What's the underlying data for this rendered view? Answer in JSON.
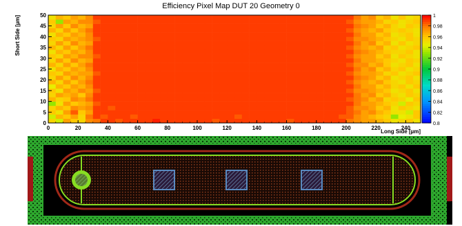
{
  "chart_data": {
    "type": "heatmap",
    "title": "Efficiency Pixel Map DUT 20 Geometry 0",
    "xlabel": "Long Side [µm]",
    "ylabel": "Short Side [µm]",
    "xlim": [
      0,
      250
    ],
    "ylim": [
      0,
      50
    ],
    "x_ticks": [
      "0",
      "20",
      "40",
      "60",
      "80",
      "100",
      "120",
      "140",
      "160",
      "180",
      "200",
      "220",
      "240"
    ],
    "y_ticks": [
      "0",
      "5",
      "10",
      "15",
      "20",
      "25",
      "30",
      "35",
      "40",
      "45",
      "50"
    ],
    "x_bins": 50,
    "y_bins": 25,
    "bin_size": [
      5,
      2
    ],
    "z_range": [
      0.8,
      1.0
    ],
    "colorbar_ticks": [
      "0.8",
      "0.82",
      "0.84",
      "0.86",
      "0.88",
      "0.9",
      "0.92",
      "0.94",
      "0.96",
      "0.98",
      "1"
    ],
    "z_values_description_rows": "rows ordered from y=0 (bottom) to y=50 (top); each row has 50 bins from x=0 to x=250",
    "z_rows": [
      [
        0.955,
        0.94,
        0.97,
        0.96,
        0.955,
        0.975,
        0.98,
        0.99,
        0.99,
        0.985,
        0.99,
        0.99,
        0.99,
        0.99,
        0.995,
        0.99,
        0.99,
        0.99,
        0.99,
        0.99,
        0.99,
        0.99,
        0.985,
        0.99,
        0.99,
        0.99,
        0.99,
        0.99,
        0.99,
        0.99,
        0.99,
        0.99,
        0.985,
        0.99,
        0.99,
        0.99,
        0.99,
        0.99,
        0.99,
        0.99,
        0.98,
        0.975,
        0.97,
        0.97,
        0.965,
        0.96,
        0.95,
        0.955,
        0.96,
        0.95
      ],
      [
        0.94,
        0.965,
        0.96,
        0.97,
        0.955,
        0.98,
        0.99,
        0.985,
        0.99,
        0.99,
        0.99,
        0.985,
        0.99,
        0.99,
        0.99,
        0.99,
        0.99,
        0.99,
        0.99,
        0.99,
        0.99,
        0.99,
        0.99,
        0.99,
        0.99,
        0.985,
        0.99,
        0.99,
        0.99,
        0.99,
        0.99,
        0.99,
        0.99,
        0.99,
        0.99,
        0.99,
        0.99,
        0.99,
        0.99,
        0.985,
        0.985,
        0.975,
        0.97,
        0.965,
        0.96,
        0.955,
        0.93,
        0.945,
        0.95,
        0.96
      ],
      [
        0.96,
        0.95,
        0.97,
        0.985,
        0.96,
        0.97,
        0.99,
        0.99,
        0.99,
        0.99,
        0.99,
        0.99,
        0.99,
        0.99,
        0.99,
        0.99,
        0.99,
        0.99,
        0.99,
        0.99,
        0.99,
        0.99,
        0.99,
        0.99,
        0.99,
        0.99,
        0.99,
        0.99,
        0.99,
        0.99,
        0.99,
        0.99,
        0.99,
        0.99,
        0.99,
        0.99,
        0.99,
        0.99,
        0.99,
        0.99,
        0.985,
        0.98,
        0.97,
        0.975,
        0.965,
        0.96,
        0.95,
        0.95,
        0.94,
        0.96
      ],
      [
        0.955,
        0.965,
        0.96,
        0.975,
        0.97,
        0.975,
        0.99,
        0.99,
        0.985,
        0.99,
        0.99,
        0.99,
        0.99,
        0.99,
        0.99,
        0.99,
        0.99,
        0.99,
        0.99,
        0.99,
        0.99,
        0.99,
        0.99,
        0.99,
        0.99,
        0.99,
        0.99,
        0.99,
        0.99,
        0.99,
        0.99,
        0.99,
        0.99,
        0.99,
        0.99,
        0.99,
        0.99,
        0.99,
        0.99,
        0.99,
        0.985,
        0.975,
        0.975,
        0.97,
        0.96,
        0.965,
        0.95,
        0.96,
        0.955,
        0.95
      ],
      [
        0.93,
        0.95,
        0.97,
        0.96,
        0.965,
        0.97,
        0.985,
        0.99,
        0.99,
        0.99,
        0.99,
        0.99,
        0.99,
        0.99,
        0.99,
        0.99,
        0.99,
        0.99,
        0.99,
        0.99,
        0.99,
        0.99,
        0.99,
        0.99,
        0.99,
        0.99,
        0.99,
        0.99,
        0.99,
        0.99,
        0.99,
        0.99,
        0.99,
        0.99,
        0.99,
        0.99,
        0.99,
        0.99,
        0.99,
        0.99,
        0.99,
        0.98,
        0.97,
        0.97,
        0.965,
        0.96,
        0.955,
        0.94,
        0.96,
        0.955
      ],
      [
        0.965,
        0.955,
        0.96,
        0.975,
        0.97,
        0.98,
        0.99,
        0.99,
        0.99,
        0.99,
        0.99,
        0.99,
        0.99,
        0.99,
        0.99,
        0.99,
        0.99,
        0.99,
        0.99,
        0.99,
        0.99,
        0.99,
        0.99,
        0.99,
        0.99,
        0.99,
        0.99,
        0.99,
        0.99,
        0.99,
        0.99,
        0.99,
        0.99,
        0.99,
        0.99,
        0.99,
        0.99,
        0.99,
        0.99,
        0.99,
        0.985,
        0.98,
        0.975,
        0.965,
        0.97,
        0.955,
        0.96,
        0.955,
        0.945,
        0.96
      ],
      [
        0.955,
        0.97,
        0.965,
        0.97,
        0.96,
        0.975,
        0.99,
        0.99,
        0.99,
        0.99,
        0.99,
        0.99,
        0.99,
        0.99,
        0.99,
        0.99,
        0.99,
        0.99,
        0.99,
        0.99,
        0.99,
        0.99,
        0.99,
        0.99,
        0.99,
        0.99,
        0.99,
        0.99,
        0.99,
        0.99,
        0.99,
        0.99,
        0.99,
        0.99,
        0.99,
        0.99,
        0.99,
        0.99,
        0.99,
        0.99,
        0.99,
        0.98,
        0.97,
        0.975,
        0.96,
        0.965,
        0.955,
        0.95,
        0.96,
        0.955
      ],
      [
        0.96,
        0.95,
        0.97,
        0.965,
        0.975,
        0.97,
        0.985,
        0.99,
        0.99,
        0.99,
        0.99,
        0.99,
        0.99,
        0.99,
        0.99,
        0.99,
        0.99,
        0.99,
        0.99,
        0.99,
        0.99,
        0.99,
        0.99,
        0.99,
        0.99,
        0.99,
        0.99,
        0.99,
        0.99,
        0.99,
        0.99,
        0.99,
        0.99,
        0.99,
        0.99,
        0.99,
        0.99,
        0.99,
        0.99,
        0.99,
        0.985,
        0.975,
        0.975,
        0.97,
        0.965,
        0.96,
        0.95,
        0.955,
        0.96,
        0.95
      ],
      [
        0.945,
        0.965,
        0.96,
        0.97,
        0.965,
        0.975,
        0.99,
        0.99,
        0.99,
        0.99,
        0.99,
        0.99,
        0.99,
        0.99,
        0.99,
        0.99,
        0.99,
        0.99,
        0.99,
        0.99,
        0.99,
        0.99,
        0.99,
        0.99,
        0.99,
        0.99,
        0.99,
        0.99,
        0.99,
        0.99,
        0.99,
        0.99,
        0.99,
        0.99,
        0.99,
        0.99,
        0.99,
        0.99,
        0.99,
        0.99,
        0.99,
        0.98,
        0.97,
        0.97,
        0.96,
        0.965,
        0.955,
        0.96,
        0.95,
        0.96
      ],
      [
        0.965,
        0.955,
        0.97,
        0.96,
        0.97,
        0.98,
        0.99,
        0.99,
        0.99,
        0.99,
        0.99,
        0.99,
        0.99,
        0.99,
        0.99,
        0.99,
        0.99,
        0.99,
        0.99,
        0.99,
        0.99,
        0.99,
        0.99,
        0.99,
        0.99,
        0.99,
        0.99,
        0.99,
        0.99,
        0.99,
        0.99,
        0.99,
        0.99,
        0.99,
        0.99,
        0.99,
        0.99,
        0.99,
        0.99,
        0.99,
        0.985,
        0.975,
        0.97,
        0.965,
        0.97,
        0.96,
        0.955,
        0.95,
        0.96,
        0.955
      ],
      [
        0.955,
        0.97,
        0.96,
        0.975,
        0.965,
        0.975,
        0.99,
        0.99,
        0.99,
        0.99,
        0.99,
        0.99,
        0.99,
        0.99,
        0.99,
        0.99,
        0.99,
        0.99,
        0.99,
        0.99,
        0.99,
        0.99,
        0.99,
        0.99,
        0.99,
        0.99,
        0.99,
        0.99,
        0.99,
        0.99,
        0.99,
        0.99,
        0.99,
        0.99,
        0.99,
        0.99,
        0.99,
        0.99,
        0.99,
        0.99,
        0.99,
        0.98,
        0.975,
        0.97,
        0.96,
        0.965,
        0.95,
        0.955,
        0.96,
        0.95
      ],
      [
        0.96,
        0.955,
        0.97,
        0.965,
        0.97,
        0.97,
        0.985,
        0.99,
        0.99,
        0.99,
        0.99,
        0.99,
        0.99,
        0.99,
        0.99,
        0.99,
        0.99,
        0.99,
        0.99,
        0.99,
        0.99,
        0.99,
        0.99,
        0.99,
        0.99,
        0.99,
        0.99,
        0.99,
        0.99,
        0.99,
        0.99,
        0.99,
        0.99,
        0.99,
        0.99,
        0.99,
        0.99,
        0.99,
        0.99,
        0.99,
        0.985,
        0.975,
        0.97,
        0.97,
        0.965,
        0.955,
        0.96,
        0.95,
        0.955,
        0.96
      ],
      [
        0.95,
        0.965,
        0.96,
        0.97,
        0.965,
        0.975,
        0.99,
        0.99,
        0.99,
        0.99,
        0.99,
        0.99,
        0.99,
        0.99,
        0.99,
        0.99,
        0.99,
        0.99,
        0.99,
        0.99,
        0.99,
        0.99,
        0.99,
        0.99,
        0.99,
        0.99,
        0.99,
        0.99,
        0.99,
        0.99,
        0.99,
        0.99,
        0.99,
        0.99,
        0.99,
        0.99,
        0.99,
        0.99,
        0.99,
        0.99,
        0.99,
        0.98,
        0.97,
        0.975,
        0.96,
        0.965,
        0.955,
        0.96,
        0.95,
        0.955
      ],
      [
        0.965,
        0.955,
        0.97,
        0.96,
        0.97,
        0.98,
        0.99,
        0.99,
        0.99,
        0.99,
        0.99,
        0.99,
        0.99,
        0.99,
        0.99,
        0.99,
        0.99,
        0.99,
        0.99,
        0.99,
        0.99,
        0.99,
        0.99,
        0.99,
        0.99,
        0.99,
        0.99,
        0.99,
        0.99,
        0.99,
        0.99,
        0.99,
        0.99,
        0.99,
        0.99,
        0.99,
        0.99,
        0.99,
        0.99,
        0.99,
        0.985,
        0.975,
        0.975,
        0.965,
        0.97,
        0.96,
        0.95,
        0.955,
        0.96,
        0.95
      ],
      [
        0.955,
        0.97,
        0.96,
        0.975,
        0.965,
        0.97,
        0.99,
        0.99,
        0.99,
        0.99,
        0.99,
        0.99,
        0.99,
        0.99,
        0.99,
        0.99,
        0.99,
        0.99,
        0.99,
        0.99,
        0.99,
        0.99,
        0.99,
        0.99,
        0.99,
        0.99,
        0.99,
        0.99,
        0.99,
        0.99,
        0.99,
        0.99,
        0.99,
        0.99,
        0.99,
        0.99,
        0.99,
        0.99,
        0.99,
        0.99,
        0.99,
        0.98,
        0.97,
        0.97,
        0.965,
        0.96,
        0.955,
        0.95,
        0.96,
        0.955
      ],
      [
        0.96,
        0.955,
        0.97,
        0.965,
        0.975,
        0.975,
        0.985,
        0.99,
        0.99,
        0.99,
        0.99,
        0.99,
        0.99,
        0.99,
        0.99,
        0.99,
        0.99,
        0.99,
        0.99,
        0.99,
        0.99,
        0.99,
        0.99,
        0.99,
        0.99,
        0.99,
        0.99,
        0.99,
        0.99,
        0.99,
        0.99,
        0.99,
        0.99,
        0.99,
        0.99,
        0.99,
        0.99,
        0.99,
        0.99,
        0.99,
        0.985,
        0.975,
        0.97,
        0.97,
        0.96,
        0.965,
        0.95,
        0.96,
        0.955,
        0.95
      ],
      [
        0.95,
        0.965,
        0.96,
        0.97,
        0.965,
        0.975,
        0.99,
        0.99,
        0.99,
        0.99,
        0.99,
        0.99,
        0.99,
        0.99,
        0.99,
        0.99,
        0.99,
        0.99,
        0.99,
        0.99,
        0.99,
        0.99,
        0.99,
        0.99,
        0.99,
        0.99,
        0.99,
        0.99,
        0.99,
        0.99,
        0.99,
        0.99,
        0.99,
        0.99,
        0.99,
        0.99,
        0.99,
        0.99,
        0.99,
        0.99,
        0.99,
        0.98,
        0.975,
        0.97,
        0.965,
        0.96,
        0.955,
        0.955,
        0.96,
        0.95
      ],
      [
        0.965,
        0.955,
        0.97,
        0.96,
        0.97,
        0.98,
        0.99,
        0.99,
        0.99,
        0.99,
        0.99,
        0.99,
        0.99,
        0.99,
        0.99,
        0.99,
        0.99,
        0.99,
        0.99,
        0.99,
        0.99,
        0.99,
        0.99,
        0.99,
        0.99,
        0.99,
        0.99,
        0.99,
        0.99,
        0.99,
        0.99,
        0.99,
        0.99,
        0.99,
        0.99,
        0.99,
        0.99,
        0.99,
        0.99,
        0.99,
        0.985,
        0.975,
        0.97,
        0.965,
        0.97,
        0.955,
        0.96,
        0.95,
        0.955,
        0.96
      ],
      [
        0.955,
        0.97,
        0.96,
        0.975,
        0.965,
        0.97,
        0.99,
        0.99,
        0.99,
        0.99,
        0.99,
        0.99,
        0.99,
        0.99,
        0.99,
        0.99,
        0.99,
        0.99,
        0.99,
        0.99,
        0.99,
        0.99,
        0.99,
        0.99,
        0.99,
        0.99,
        0.99,
        0.99,
        0.99,
        0.99,
        0.99,
        0.99,
        0.99,
        0.99,
        0.99,
        0.99,
        0.99,
        0.99,
        0.99,
        0.99,
        0.99,
        0.98,
        0.97,
        0.975,
        0.96,
        0.965,
        0.95,
        0.96,
        0.95,
        0.955
      ],
      [
        0.96,
        0.955,
        0.97,
        0.965,
        0.97,
        0.975,
        0.985,
        0.99,
        0.99,
        0.99,
        0.99,
        0.99,
        0.99,
        0.99,
        0.99,
        0.99,
        0.99,
        0.99,
        0.99,
        0.99,
        0.99,
        0.99,
        0.99,
        0.99,
        0.99,
        0.99,
        0.99,
        0.99,
        0.99,
        0.99,
        0.99,
        0.99,
        0.99,
        0.99,
        0.99,
        0.99,
        0.99,
        0.99,
        0.99,
        0.99,
        0.985,
        0.975,
        0.975,
        0.97,
        0.965,
        0.96,
        0.955,
        0.95,
        0.96,
        0.955
      ],
      [
        0.95,
        0.965,
        0.96,
        0.97,
        0.965,
        0.975,
        0.99,
        0.99,
        0.99,
        0.99,
        0.99,
        0.99,
        0.99,
        0.99,
        0.99,
        0.99,
        0.99,
        0.99,
        0.99,
        0.99,
        0.99,
        0.99,
        0.99,
        0.99,
        0.99,
        0.99,
        0.99,
        0.99,
        0.99,
        0.99,
        0.99,
        0.99,
        0.99,
        0.99,
        0.99,
        0.99,
        0.99,
        0.99,
        0.99,
        0.99,
        0.99,
        0.98,
        0.97,
        0.97,
        0.96,
        0.965,
        0.95,
        0.955,
        0.96,
        0.95
      ],
      [
        0.965,
        0.955,
        0.97,
        0.96,
        0.97,
        0.98,
        0.99,
        0.99,
        0.99,
        0.99,
        0.99,
        0.99,
        0.99,
        0.99,
        0.99,
        0.99,
        0.99,
        0.99,
        0.99,
        0.99,
        0.99,
        0.99,
        0.99,
        0.99,
        0.99,
        0.99,
        0.99,
        0.99,
        0.99,
        0.99,
        0.99,
        0.99,
        0.99,
        0.99,
        0.99,
        0.99,
        0.99,
        0.99,
        0.99,
        0.99,
        0.985,
        0.975,
        0.97,
        0.965,
        0.97,
        0.96,
        0.955,
        0.96,
        0.955,
        0.95
      ],
      [
        0.955,
        0.97,
        0.96,
        0.975,
        0.965,
        0.97,
        0.99,
        0.99,
        0.99,
        0.99,
        0.99,
        0.99,
        0.99,
        0.99,
        0.99,
        0.99,
        0.99,
        0.99,
        0.99,
        0.99,
        0.99,
        0.99,
        0.99,
        0.99,
        0.99,
        0.99,
        0.99,
        0.99,
        0.99,
        0.99,
        0.99,
        0.99,
        0.99,
        0.99,
        0.99,
        0.99,
        0.99,
        0.99,
        0.99,
        0.99,
        0.99,
        0.98,
        0.975,
        0.97,
        0.96,
        0.965,
        0.955,
        0.95,
        0.96,
        0.955
      ],
      [
        0.96,
        0.93,
        0.97,
        0.965,
        0.975,
        0.975,
        0.985,
        0.99,
        0.99,
        0.99,
        0.99,
        0.99,
        0.99,
        0.99,
        0.99,
        0.99,
        0.99,
        0.99,
        0.99,
        0.99,
        0.99,
        0.99,
        0.99,
        0.99,
        0.99,
        0.99,
        0.99,
        0.99,
        0.99,
        0.99,
        0.99,
        0.99,
        0.99,
        0.99,
        0.99,
        0.99,
        0.99,
        0.99,
        0.99,
        0.99,
        0.985,
        0.975,
        0.97,
        0.97,
        0.965,
        0.955,
        0.96,
        0.95,
        0.955,
        0.96
      ],
      [
        0.95,
        0.965,
        0.96,
        0.97,
        0.965,
        0.975,
        0.99,
        0.99,
        0.99,
        0.99,
        0.99,
        0.99,
        0.99,
        0.99,
        0.99,
        0.99,
        0.99,
        0.99,
        0.99,
        0.99,
        0.99,
        0.99,
        0.99,
        0.99,
        0.99,
        0.99,
        0.99,
        0.99,
        0.99,
        0.99,
        0.99,
        0.99,
        0.99,
        0.99,
        0.99,
        0.99,
        0.99,
        0.99,
        0.99,
        0.99,
        0.99,
        0.98,
        0.97,
        0.975,
        0.96,
        0.965,
        0.95,
        0.96,
        0.95,
        0.955
      ]
    ]
  }
}
